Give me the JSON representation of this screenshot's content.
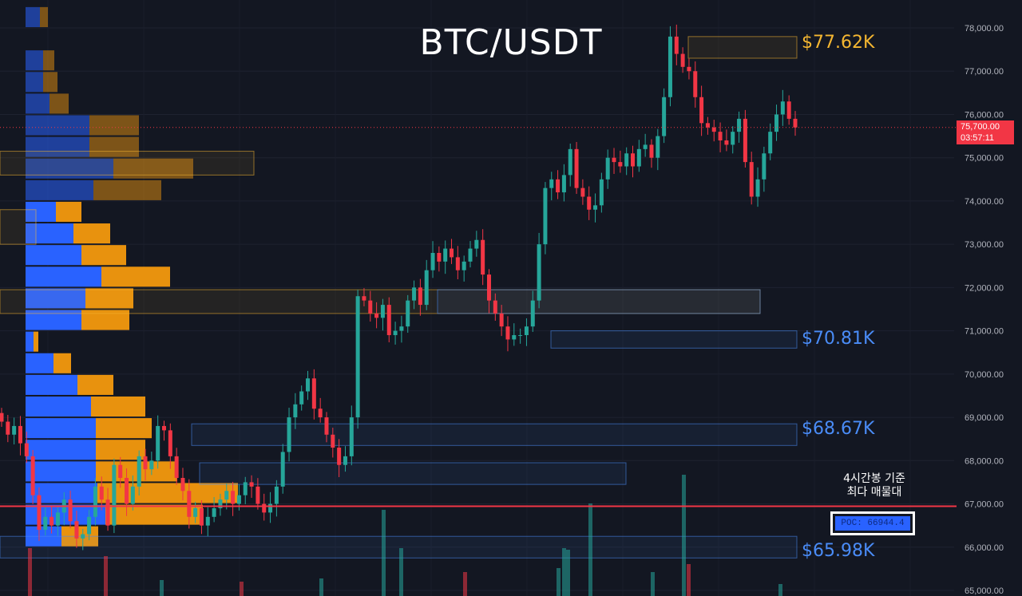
{
  "title": "BTC/USDT",
  "annotations": {
    "level_77": "$77.62K",
    "level_70": "$70.81K",
    "level_68": "$68.67K",
    "level_65": "$65.98K",
    "note_line1": "4시간봉 기준",
    "note_line2": "최다 매물대",
    "poc": "POC: 66944.4"
  },
  "price_tag": {
    "price": "75,700.00",
    "countdown": "03:57:11"
  },
  "colors": {
    "up": "#26a69a",
    "down": "#f23645",
    "volume_profile_blue": "#2962ff",
    "volume_profile_orange": "#e8920e",
    "poc_line": "#f23645",
    "level_gold": "#f5b731",
    "level_blue": "#4a8cf7"
  },
  "chart_data": {
    "type": "candlestick",
    "y_axis_ticks": [
      "78,000.00",
      "77,000.00",
      "76,000.00",
      "75,000.00",
      "74,000.00",
      "73,000.00",
      "72,000.00",
      "71,000.00",
      "70,000.00",
      "69,000.00",
      "68,000.00",
      "67,000.00",
      "66,000.00",
      "65,000.00"
    ],
    "ylim": [
      65000,
      78200
    ],
    "poc_price": 66944.4,
    "current_price": 75700,
    "closes": [
      68900,
      68600,
      68800,
      68400,
      68100,
      67200,
      66400,
      66700,
      66500,
      66800,
      67100,
      66600,
      66200,
      66300,
      66700,
      67400,
      67100,
      66500,
      67900,
      67600,
      67000,
      67400,
      68100,
      67800,
      68000,
      68800,
      68700,
      68100,
      67600,
      67300,
      66700,
      66900,
      66500,
      66700,
      66900,
      67100,
      67300,
      67000,
      67200,
      67500,
      67400,
      67000,
      66800,
      67000,
      67400,
      68200,
      69000,
      69300,
      69600,
      69900,
      69200,
      69000,
      68600,
      68300,
      67900,
      68100,
      69000,
      71800,
      71700,
      71400,
      71300,
      71600,
      70900,
      71000,
      71100,
      71700,
      72000,
      71600,
      72400,
      72800,
      72600,
      72900,
      72700,
      72400,
      72600,
      72900,
      73100,
      72300,
      71700,
      71400,
      71100,
      70800,
      70900,
      70900,
      71100,
      71700,
      73000,
      74300,
      74500,
      74200,
      74600,
      75200,
      74300,
      74100,
      73800,
      73900,
      74500,
      75000,
      74900,
      74800,
      75100,
      74800,
      75200,
      75300,
      75000,
      75500,
      76400,
      77800,
      77400,
      77100,
      77000,
      76400,
      75800,
      75700,
      75600,
      75400,
      75300,
      75600,
      75900,
      74900,
      74100,
      74500,
      75100,
      75600,
      76000,
      76300,
      75900,
      75700
    ],
    "poc_volume_profile_note": "volume profile bars on left, POC at 66944.4"
  }
}
